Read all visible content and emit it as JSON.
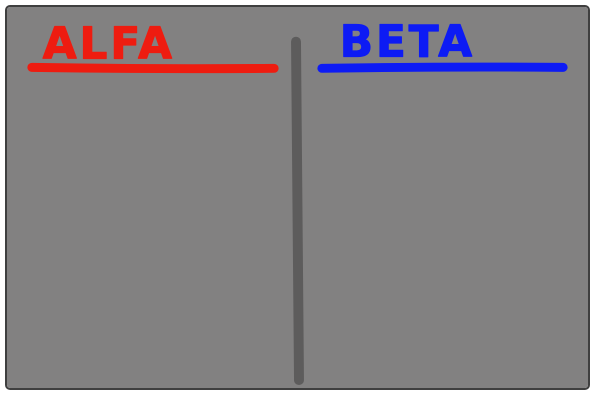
{
  "board": {
    "background_color": "#828181",
    "border_color": "#3f3f3f",
    "divider_color": "#5d5c5c"
  },
  "columns": [
    {
      "title": "ALFA",
      "color": "#ee1c10"
    },
    {
      "title": "BETA",
      "color": "#0d1bf4"
    }
  ]
}
